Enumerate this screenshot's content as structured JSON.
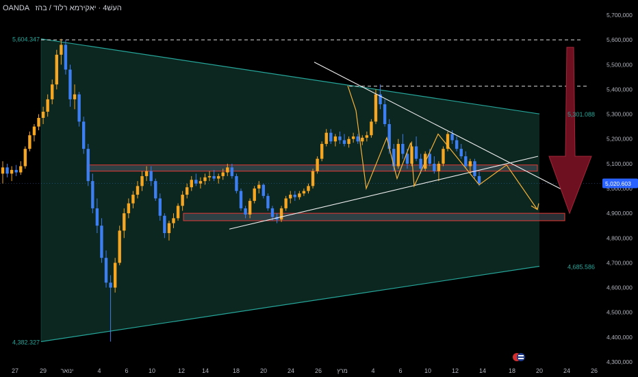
{
  "header": {
    "broker": "OANDA",
    "title": "העשׁ4 · יאקירמא רלוד / בהז"
  },
  "price_axis": {
    "labels": [
      "5,700,000",
      "5,600,000",
      "5,500,000",
      "5,400,000",
      "5,300,000",
      "5,200,000",
      "5,100,000",
      "5,000,000",
      "4,900,000",
      "4,800,000",
      "4,700,000",
      "4,600,000",
      "4,500,000",
      "4,400,000",
      "4,300,000"
    ],
    "current_price": "5,020.603",
    "current_price_color": "#2962ff"
  },
  "time_axis": {
    "labels": [
      "27",
      "29",
      "ינואר",
      "4",
      "6",
      "10",
      "12",
      "14",
      "18",
      "20",
      "24",
      "26",
      "מרץ",
      "4",
      "6",
      "10",
      "12",
      "14",
      "18",
      "20",
      "24",
      "26"
    ]
  },
  "annotations": {
    "high_label": "5,604.347",
    "low_label": "4,382.327",
    "upper_target": "5,301.088",
    "lower_target": "4,685.586"
  },
  "colors": {
    "up": "#f5a623",
    "down": "#3d7ef0",
    "channel_fill": "#0d2a23",
    "channel_line": "#26a69a",
    "zone_fill": "#4a5560",
    "zone_border": "#e53935",
    "arrow": "#6e1020",
    "pattern": "#f5b33b"
  },
  "chart_data": {
    "type": "candlestick",
    "title": "",
    "xlabel": "",
    "ylabel": "",
    "ylim": [
      4300,
      5730
    ],
    "series": [
      {
        "values": [
          [
            5060,
            5110,
            5020,
            5085
          ],
          [
            5085,
            5100,
            5045,
            5060
          ],
          [
            5060,
            5090,
            5030,
            5075
          ],
          [
            5075,
            5095,
            5050,
            5065
          ],
          [
            5065,
            5110,
            5055,
            5090
          ],
          [
            5090,
            5170,
            5080,
            5160
          ],
          [
            5160,
            5230,
            5150,
            5215
          ],
          [
            5215,
            5260,
            5190,
            5250
          ],
          [
            5250,
            5300,
            5235,
            5285
          ],
          [
            5285,
            5330,
            5260,
            5310
          ],
          [
            5310,
            5380,
            5290,
            5360
          ],
          [
            5360,
            5440,
            5340,
            5420
          ],
          [
            5420,
            5560,
            5400,
            5540
          ],
          [
            5540,
            5604,
            5500,
            5580
          ],
          [
            5580,
            5600,
            5460,
            5480
          ],
          [
            5480,
            5500,
            5330,
            5360
          ],
          [
            5360,
            5420,
            5320,
            5380
          ],
          [
            5380,
            5390,
            5250,
            5270
          ],
          [
            5270,
            5290,
            5140,
            5160
          ],
          [
            5160,
            5180,
            5010,
            5030
          ],
          [
            5030,
            5060,
            4900,
            4920
          ],
          [
            4920,
            4960,
            4820,
            4850
          ],
          [
            4850,
            4880,
            4700,
            4720
          ],
          [
            4720,
            4750,
            4600,
            4620
          ],
          [
            4620,
            4650,
            4382,
            4600
          ],
          [
            4600,
            4720,
            4580,
            4700
          ],
          [
            4700,
            4850,
            4690,
            4830
          ],
          [
            4830,
            4920,
            4800,
            4900
          ],
          [
            4900,
            4960,
            4880,
            4940
          ],
          [
            4940,
            4990,
            4920,
            4975
          ],
          [
            4975,
            5030,
            4960,
            5010
          ],
          [
            5010,
            5070,
            4990,
            5050
          ],
          [
            5050,
            5090,
            5030,
            5070
          ],
          [
            5070,
            5090,
            5010,
            5030
          ],
          [
            5030,
            5040,
            4950,
            4960
          ],
          [
            4960,
            4980,
            4870,
            4890
          ],
          [
            4890,
            4900,
            4800,
            4820
          ],
          [
            4820,
            4870,
            4790,
            4860
          ],
          [
            4860,
            4900,
            4840,
            4880
          ],
          [
            4880,
            4940,
            4870,
            4930
          ],
          [
            4930,
            4990,
            4910,
            4975
          ],
          [
            4975,
            5020,
            4960,
            5005
          ],
          [
            5005,
            5050,
            4990,
            5035
          ],
          [
            5035,
            5060,
            5010,
            5020
          ],
          [
            5020,
            5045,
            5000,
            5030
          ],
          [
            5030,
            5060,
            5015,
            5045
          ],
          [
            5045,
            5070,
            5030,
            5050
          ],
          [
            5050,
            5075,
            5030,
            5040
          ],
          [
            5040,
            5060,
            5020,
            5050
          ],
          [
            5050,
            5080,
            5035,
            5065
          ],
          [
            5065,
            5100,
            5050,
            5085
          ],
          [
            5085,
            5100,
            5040,
            5050
          ],
          [
            5050,
            5060,
            4980,
            4990
          ],
          [
            4990,
            5000,
            4910,
            4920
          ],
          [
            4920,
            4930,
            4880,
            4895
          ],
          [
            4895,
            4960,
            4880,
            4950
          ],
          [
            4950,
            5010,
            4940,
            5000
          ],
          [
            5000,
            5030,
            4980,
            5015
          ],
          [
            5015,
            5020,
            4960,
            4970
          ],
          [
            4970,
            4980,
            4910,
            4920
          ],
          [
            4920,
            4930,
            4870,
            4885
          ],
          [
            4885,
            4900,
            4860,
            4875
          ],
          [
            4875,
            4930,
            4865,
            4920
          ],
          [
            4920,
            4970,
            4910,
            4960
          ],
          [
            4960,
            4990,
            4940,
            4975
          ],
          [
            4975,
            4990,
            4950,
            4965
          ],
          [
            4965,
            4990,
            4955,
            4980
          ],
          [
            4980,
            5000,
            4970,
            4990
          ],
          [
            4990,
            5020,
            4980,
            5010
          ],
          [
            5010,
            5080,
            5000,
            5070
          ],
          [
            5070,
            5130,
            5060,
            5120
          ],
          [
            5120,
            5190,
            5110,
            5180
          ],
          [
            5180,
            5240,
            5170,
            5225
          ],
          [
            5225,
            5240,
            5180,
            5190
          ],
          [
            5190,
            5220,
            5170,
            5210
          ],
          [
            5210,
            5230,
            5180,
            5195
          ],
          [
            5195,
            5220,
            5170,
            5180
          ],
          [
            5180,
            5210,
            5165,
            5200
          ],
          [
            5200,
            5225,
            5185,
            5210
          ],
          [
            5210,
            5220,
            5180,
            5190
          ],
          [
            5190,
            5215,
            5175,
            5205
          ],
          [
            5205,
            5230,
            5190,
            5215
          ],
          [
            5215,
            5280,
            5205,
            5270
          ],
          [
            5270,
            5400,
            5260,
            5380
          ],
          [
            5380,
            5420,
            5320,
            5340
          ],
          [
            5340,
            5360,
            5250,
            5260
          ],
          [
            5260,
            5280,
            5140,
            5160
          ],
          [
            5160,
            5180,
            5070,
            5090
          ],
          [
            5090,
            5200,
            5080,
            5180
          ],
          [
            5180,
            5220,
            5120,
            5140
          ],
          [
            5140,
            5160,
            5080,
            5100
          ],
          [
            5100,
            5190,
            5090,
            5170
          ],
          [
            5170,
            5210,
            5110,
            5120
          ],
          [
            5120,
            5140,
            5060,
            5080
          ],
          [
            5080,
            5150,
            5070,
            5140
          ],
          [
            5140,
            5160,
            5090,
            5100
          ],
          [
            5100,
            5130,
            5060,
            5070
          ],
          [
            5070,
            5110,
            5030,
            5100
          ],
          [
            5100,
            5170,
            5090,
            5160
          ],
          [
            5160,
            5230,
            5150,
            5220
          ],
          [
            5220,
            5235,
            5180,
            5195
          ],
          [
            5195,
            5210,
            5150,
            5160
          ],
          [
            5160,
            5180,
            5120,
            5130
          ],
          [
            5130,
            5150,
            5080,
            5090
          ],
          [
            5090,
            5120,
            5060,
            5110
          ],
          [
            5110,
            5120,
            5040,
            5050
          ],
          [
            5050,
            5070,
            5010,
            5021
          ]
        ]
      }
    ],
    "current_price": 5020.603,
    "levels": {
      "recent_high": 5604.347,
      "recent_low": 4382.327,
      "target_upper": 5301.088,
      "target_lower": 4685.586,
      "dashed_high": 5600,
      "dashed_mid": 5413
    },
    "zones": [
      {
        "from": 5070,
        "to": 5095
      },
      {
        "from": 4870,
        "to": 4900
      }
    ]
  }
}
